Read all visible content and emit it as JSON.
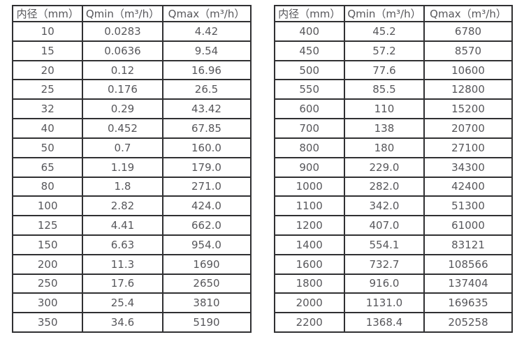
{
  "colors": {
    "background": "#ffffff",
    "table_border": "#303032",
    "text": "#57575b"
  },
  "table_left": {
    "headers": [
      "内径（mm）",
      "Qmin（m³/h）",
      "Qmax（m³/h）"
    ],
    "rows": [
      [
        "10",
        "0.0283",
        "4.42"
      ],
      [
        "15",
        "0.0636",
        "9.54"
      ],
      [
        "20",
        "0.12",
        "16.96"
      ],
      [
        "25",
        "0.176",
        "26.5"
      ],
      [
        "32",
        "0.29",
        "43.42"
      ],
      [
        "40",
        "0.452",
        "67.85"
      ],
      [
        "50",
        "0.7",
        "160.0"
      ],
      [
        "65",
        "1.19",
        "179.0"
      ],
      [
        "80",
        "1.8",
        "271.0"
      ],
      [
        "100",
        "2.82",
        "424.0"
      ],
      [
        "125",
        "4.41",
        "662.0"
      ],
      [
        "150",
        "6.63",
        "954.0"
      ],
      [
        "200",
        "11.3",
        "1690"
      ],
      [
        "250",
        "17.6",
        "2650"
      ],
      [
        "300",
        "25.4",
        "3810"
      ],
      [
        "350",
        "34.6",
        "5190"
      ]
    ]
  },
  "table_right": {
    "headers": [
      "内径（mm）",
      "Qmin（m³/h）",
      "Qmax（m³/h）"
    ],
    "rows": [
      [
        "400",
        "45.2",
        "6780"
      ],
      [
        "450",
        "57.2",
        "8570"
      ],
      [
        "500",
        "77.6",
        "10600"
      ],
      [
        "550",
        "85.5",
        "12800"
      ],
      [
        "600",
        "110",
        "15200"
      ],
      [
        "700",
        "138",
        "20700"
      ],
      [
        "800",
        "180",
        "27100"
      ],
      [
        "900",
        "229.0",
        "34300"
      ],
      [
        "1000",
        "282.0",
        "42400"
      ],
      [
        "1100",
        "342.0",
        "51300"
      ],
      [
        "1200",
        "407.0",
        "61000"
      ],
      [
        "1400",
        "554.1",
        "83121"
      ],
      [
        "1600",
        "732.7",
        "108566"
      ],
      [
        "1800",
        "916.0",
        "137404"
      ],
      [
        "2000",
        "1131.0",
        "169635"
      ],
      [
        "2200",
        "1368.4",
        "205258"
      ]
    ]
  }
}
